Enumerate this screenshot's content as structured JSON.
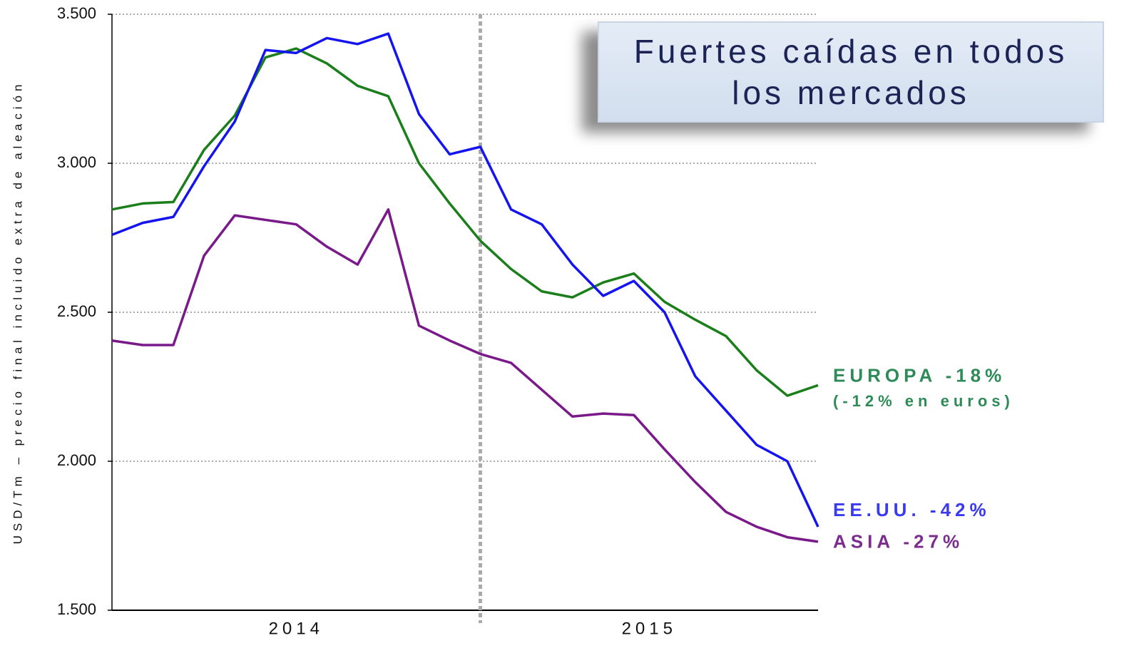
{
  "chart_data": {
    "type": "line",
    "title": "Fuertes caídas en todos los mercados",
    "y_label": "USD/Tm – precio final incluido extra de aleación",
    "categories": [
      null,
      null,
      null,
      null,
      null,
      null,
      null,
      null,
      null,
      null,
      null,
      null,
      null,
      null,
      null,
      null,
      null,
      null,
      null,
      null,
      null,
      null,
      null,
      null
    ],
    "x_group_labels": [
      "2014",
      "2015"
    ],
    "ylim": [
      1500,
      3500
    ],
    "yticks": [
      {
        "value": 1500,
        "label": "1.500"
      },
      {
        "value": 2000,
        "label": "2.000"
      },
      {
        "value": 2500,
        "label": "2.500"
      },
      {
        "value": 3000,
        "label": "3.000"
      },
      {
        "value": 3500,
        "label": "3.500"
      }
    ],
    "grid": true,
    "series": [
      {
        "name": "EUROPA -18%",
        "note": "(-12% en euros)",
        "color": "#1a7f1a",
        "label_color": "#2e8b57",
        "values": [
          2845,
          2865,
          2870,
          3045,
          3160,
          3355,
          3385,
          3335,
          3260,
          3225,
          3000,
          2865,
          2740,
          2645,
          2570,
          2550,
          2600,
          2630,
          2535,
          2475,
          2420,
          2305,
          2220,
          2255
        ]
      },
      {
        "name": "EE.UU. -42%",
        "color": "#1414f0",
        "label_color": "#3a3af0",
        "values": [
          2760,
          2800,
          2820,
          2990,
          3140,
          3380,
          3370,
          3420,
          3400,
          3435,
          3165,
          3030,
          3055,
          2845,
          2795,
          2660,
          2555,
          2605,
          2500,
          2285,
          2170,
          2055,
          2000,
          1780
        ]
      },
      {
        "name": "ASIA -27%",
        "color": "#7a1a8a",
        "label_color": "#7b2d8e",
        "values": [
          2405,
          2390,
          2390,
          2690,
          2825,
          2810,
          2795,
          2720,
          2660,
          2845,
          2455,
          2405,
          2360,
          2330,
          2240,
          2150,
          2160,
          2155,
          2040,
          1930,
          1830,
          1780,
          1745,
          1730
        ]
      }
    ]
  }
}
